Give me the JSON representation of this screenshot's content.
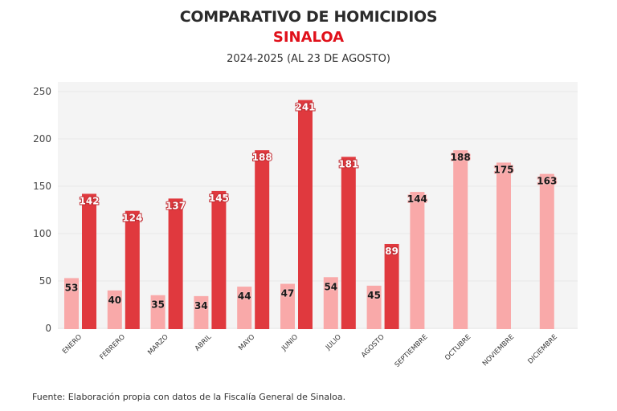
{
  "chart_data": {
    "type": "bar",
    "title": "COMPARATIVO DE HOMICIDIOS",
    "subtitle": "SINALOA",
    "period": "2024-2025 (AL 23 DE AGOSTO)",
    "xlabel": "",
    "ylabel": "",
    "ylim": [
      0,
      250
    ],
    "yticks": [
      0,
      50,
      100,
      150,
      200,
      250
    ],
    "grid": true,
    "legend": "none",
    "categories": [
      "ENERO",
      "FEBRERO",
      "MARZO",
      "ABRIL",
      "MAYO",
      "JUNIO",
      "JULIO",
      "AGOSTO",
      "SEPTIEMBRE",
      "OCTUBRE",
      "NOVIEMBRE",
      "DICIEMBRE"
    ],
    "series": [
      {
        "name": "2024",
        "color": "#f9a9a9",
        "label_color": "#1a1a1a",
        "values": [
          53,
          40,
          35,
          34,
          44,
          47,
          54,
          45,
          144,
          188,
          175,
          163
        ]
      },
      {
        "name": "2025",
        "color": "#e0393e",
        "label_color": "#ffffff",
        "values": [
          142,
          124,
          137,
          145,
          188,
          241,
          181,
          89,
          null,
          null,
          null,
          null
        ]
      }
    ],
    "source": "Fuente: Elaboración propia con datos de la Fiscalía General de Sinaloa."
  },
  "colors": {
    "title": "#2b2b2b",
    "subtitle": "#e0101a",
    "plot_bg": "#f4f4f4",
    "grid": "#e8e8e8"
  }
}
